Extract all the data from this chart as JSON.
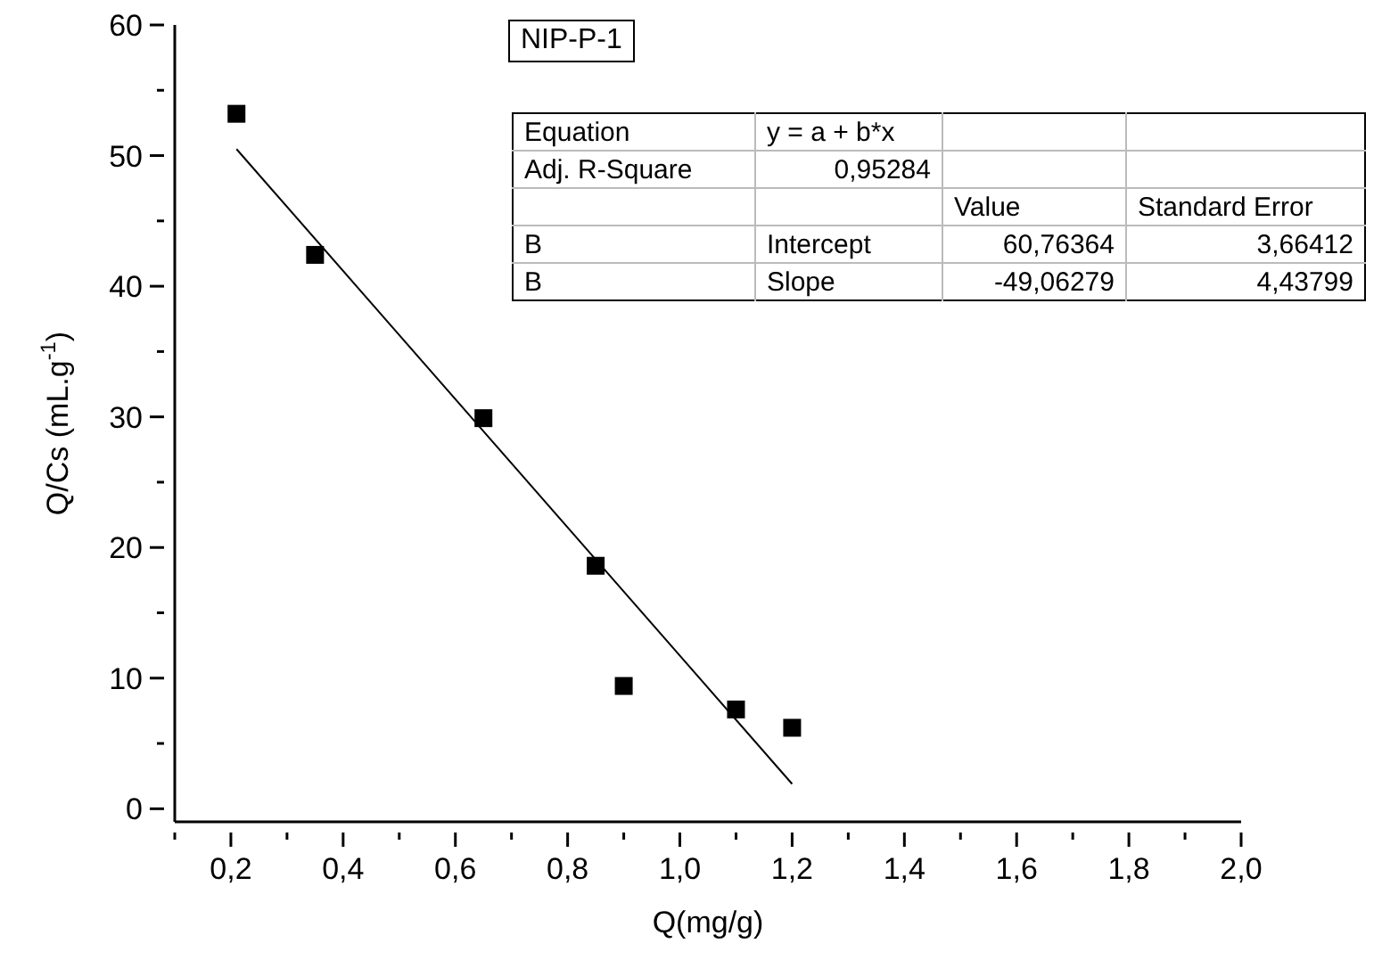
{
  "chart_data": {
    "type": "scatter",
    "xlabel": "Q(mg/g)",
    "ylabel": "Q/Cs (mL.g$^{-1}$)",
    "xlim": [
      0.1,
      2.0
    ],
    "ylim": [
      -1,
      60
    ],
    "xticks": [
      {
        "value": 0.1,
        "label": null
      },
      {
        "value": 0.2,
        "label": "0,2"
      },
      {
        "value": 0.3,
        "label": null
      },
      {
        "value": 0.4,
        "label": "0,4"
      },
      {
        "value": 0.5,
        "label": null
      },
      {
        "value": 0.6,
        "label": "0,6"
      },
      {
        "value": 0.7,
        "label": null
      },
      {
        "value": 0.8,
        "label": "0,8"
      },
      {
        "value": 0.9,
        "label": null
      },
      {
        "value": 1.0,
        "label": "1,0"
      },
      {
        "value": 1.1,
        "label": null
      },
      {
        "value": 1.2,
        "label": "1,2"
      },
      {
        "value": 1.3,
        "label": null
      },
      {
        "value": 1.4,
        "label": "1,4"
      },
      {
        "value": 1.5,
        "label": null
      },
      {
        "value": 1.6,
        "label": "1,6"
      },
      {
        "value": 1.7,
        "label": null
      },
      {
        "value": 1.8,
        "label": "1,8"
      },
      {
        "value": 1.9,
        "label": null
      },
      {
        "value": 2.0,
        "label": "2,0"
      }
    ],
    "yticks": [
      0,
      {
        "value": 5,
        "label": null
      },
      10,
      {
        "value": 15,
        "label": null
      },
      20,
      {
        "value": 25,
        "label": null
      },
      30,
      {
        "value": 35,
        "label": null
      },
      40,
      {
        "value": 45,
        "label": null
      },
      50,
      {
        "value": 55,
        "label": null
      },
      60
    ],
    "series": [
      {
        "color": "#000000",
        "marker": "square",
        "x": [
          0.21,
          0.35,
          0.65,
          0.85,
          0.9,
          1.1,
          1.2
        ],
        "values": [
          53.2,
          42.4,
          29.9,
          18.6,
          9.4,
          7.6,
          6.2
        ]
      },
      {
        "type": "line",
        "color": "#000000",
        "marker": "none",
        "x": [
          0.21,
          1.2
        ],
        "values": [
          50.5,
          1.9
        ]
      }
    ],
    "annotations": [
      "NIP-P-1",
      "Equation",
      "y = a + b*x",
      "Adj. R-Square",
      "0,95284",
      "Value",
      "Standard Error",
      "B",
      "Intercept",
      "60,76364",
      "3,66412",
      "B",
      "Slope",
      "-49,06279",
      "4,43799"
    ]
  }
}
